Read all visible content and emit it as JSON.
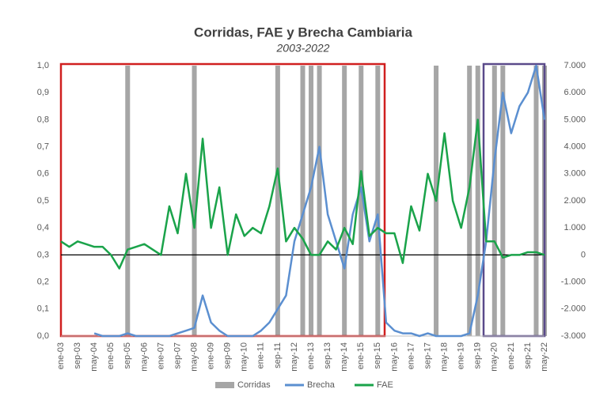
{
  "chart_data": {
    "type": "line",
    "title": "Corridas, FAE y Brecha Cambiaria",
    "subtitle": "2003-2022",
    "categories": [
      "ene-03",
      null,
      "sep-03",
      null,
      "may-04",
      null,
      "ene-05",
      null,
      "sep-05",
      null,
      "may-06",
      null,
      "ene-07",
      null,
      "sep-07",
      null,
      "may-08",
      null,
      "ene-09",
      null,
      "sep-09",
      null,
      "may-10",
      null,
      "ene-11",
      null,
      "sep-11",
      null,
      "may-12",
      null,
      "ene-13",
      null,
      "sep-13",
      null,
      "may-14",
      null,
      "ene-15",
      null,
      "sep-15",
      null,
      "may-16",
      null,
      "ene-17",
      null,
      "sep-17",
      null,
      "may-18",
      null,
      "ene-19",
      null,
      "sep-19",
      null,
      "may-20",
      null,
      "ene-21",
      null,
      "sep-21",
      null,
      "may-22"
    ],
    "series": [
      {
        "name": "Corridas",
        "kind": "bar",
        "color": "#a6a6a6",
        "values": [
          0,
          0,
          0,
          0,
          0,
          0,
          0,
          0,
          1,
          0,
          0,
          0,
          0,
          0,
          0,
          0,
          1,
          0,
          0,
          0,
          0,
          0,
          0,
          0,
          0,
          0,
          1,
          0,
          0,
          1,
          1,
          1,
          0,
          0,
          1,
          0,
          1,
          0,
          1,
          0,
          0,
          0,
          0,
          0,
          0,
          1,
          0,
          0,
          0,
          1,
          1,
          0,
          1,
          1,
          0,
          0,
          0,
          1,
          1
        ]
      },
      {
        "name": "Brecha",
        "color": "#5b8fd0",
        "values": [
          null,
          null,
          null,
          null,
          0.01,
          0,
          0,
          0,
          0.01,
          0,
          0,
          0,
          0,
          0,
          0.01,
          0.02,
          0.03,
          0.15,
          0.05,
          0.02,
          0,
          0,
          0,
          0,
          0.02,
          0.05,
          0.1,
          0.15,
          0.35,
          0.45,
          0.55,
          0.7,
          0.45,
          0.35,
          0.25,
          0.45,
          0.55,
          0.35,
          0.45,
          0.05,
          0.02,
          0.01,
          0.01,
          0,
          0.01,
          0,
          0,
          0,
          0,
          0.01,
          0.15,
          0.35,
          0.65,
          0.9,
          0.75,
          0.85,
          0.9,
          1.0,
          0.8
        ]
      },
      {
        "name": "FAE",
        "color": "#1aa34a",
        "axis": "y2",
        "values": [
          500,
          300,
          500,
          400,
          300,
          300,
          0,
          -500,
          200,
          300,
          400,
          200,
          0,
          1800,
          800,
          3000,
          1000,
          4300,
          1000,
          2500,
          0,
          1500,
          700,
          1000,
          800,
          1800,
          3200,
          500,
          1000,
          600,
          0,
          0,
          500,
          200,
          1000,
          400,
          3100,
          700,
          1000,
          800,
          800,
          -300,
          1800,
          900,
          3000,
          2000,
          4500,
          2000,
          1000,
          2500,
          5000,
          500,
          500,
          -100,
          0,
          0,
          100,
          100,
          0
        ]
      }
    ],
    "ylim": [
      0,
      1.0
    ],
    "yticks": [
      {
        "value": 0,
        "label": "0,0"
      },
      {
        "value": 0.1,
        "label": "0,1"
      },
      {
        "value": 0.2,
        "label": "0,2"
      },
      {
        "value": 0.3,
        "label": "0,3"
      },
      {
        "value": 0.4,
        "label": "0,4"
      },
      {
        "value": 0.5,
        "label": "0,5"
      },
      {
        "value": 0.6,
        "label": "0,6"
      },
      {
        "value": 0.7,
        "label": "0,7"
      },
      {
        "value": 0.8,
        "label": "0,8"
      },
      {
        "value": 0.9,
        "label": "0,9"
      },
      {
        "value": 1.0,
        "label": "1,0"
      }
    ],
    "y2lim": [
      -3000,
      7000
    ],
    "y2ticks": [
      {
        "value": -3000,
        "label": "-3.000"
      },
      {
        "value": -2000,
        "label": "-2.000"
      },
      {
        "value": -1000,
        "label": "-1.000"
      },
      0,
      {
        "value": 1000,
        "label": "1.000"
      },
      {
        "value": 2000,
        "label": "2.000"
      },
      {
        "value": 3000,
        "label": "3.000"
      },
      {
        "value": 4000,
        "label": "4.000"
      },
      {
        "value": 5000,
        "label": "5.000"
      },
      {
        "value": 6000,
        "label": "6.000"
      },
      {
        "value": 7000,
        "label": "7.000"
      }
    ]
  }
}
